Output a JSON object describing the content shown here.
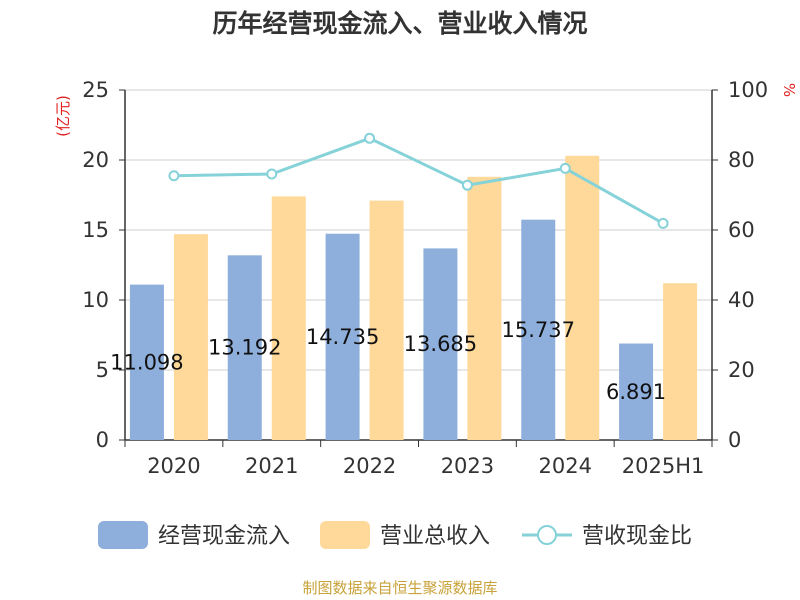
{
  "chart_data": {
    "type": "bar",
    "title": "历年经营现金流入、营业收入情况",
    "categories": [
      "2020",
      "2021",
      "2022",
      "2023",
      "2024",
      "2025H1"
    ],
    "series": [
      {
        "name": "经营现金流入",
        "type": "bar",
        "axis": "left",
        "color": "#8eaedb",
        "values": [
          11.098,
          13.192,
          14.735,
          13.685,
          15.737,
          6.891
        ],
        "labels": [
          "11.098",
          "13.192",
          "14.735",
          "13.685",
          "15.737",
          "6.891"
        ]
      },
      {
        "name": "营业总收入",
        "type": "bar",
        "axis": "left",
        "color": "#fed999",
        "values": [
          14.7,
          17.4,
          17.1,
          18.8,
          20.3,
          11.2
        ]
      },
      {
        "name": "营收现金比",
        "type": "line",
        "axis": "right",
        "color": "#86d2d9",
        "values": [
          75.5,
          76.0,
          86.2,
          72.8,
          77.6,
          61.9
        ]
      }
    ],
    "y_left": {
      "label": "(亿元)",
      "min": 0,
      "max": 25,
      "ticks": [
        "0",
        "5",
        "10",
        "15",
        "20",
        "25"
      ]
    },
    "y_right": {
      "label": "%",
      "min": 0,
      "max": 100,
      "ticks": [
        "0",
        "20",
        "40",
        "60",
        "80",
        "100"
      ]
    },
    "grid": true,
    "legend": "bottom",
    "source": "制图数据来自恒生聚源数据库"
  }
}
